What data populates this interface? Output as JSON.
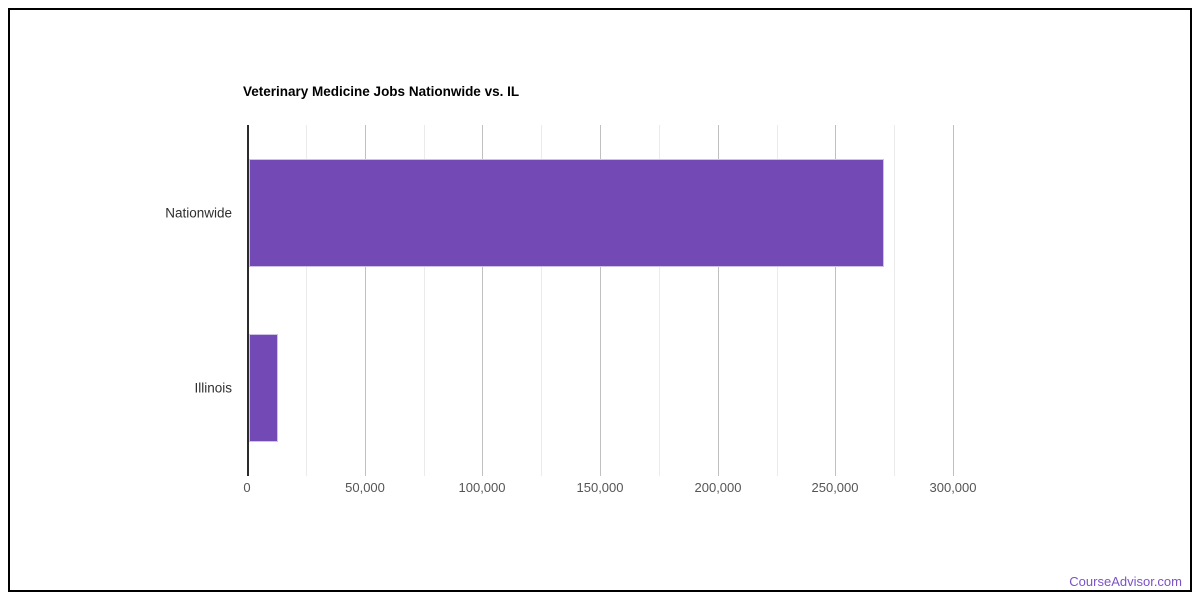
{
  "page": {
    "background_color": "#ffffff",
    "frame_border_color": "#000000"
  },
  "chart_data": {
    "type": "bar",
    "orientation": "horizontal",
    "title": "Veterinary Medicine Jobs Nationwide vs. IL",
    "categories": [
      "Nationwide",
      "Illinois"
    ],
    "values": [
      270000,
      12500
    ],
    "xlabel": "",
    "ylabel": "",
    "xlim": [
      0,
      300000
    ],
    "xticks": [
      0,
      50000,
      100000,
      150000,
      200000,
      250000,
      300000
    ],
    "minor_gridline_step": 25000,
    "grid": true,
    "legend": "none",
    "colors": {
      "bar_fill": "#7249b5",
      "bar_border": "#cfc2e9",
      "major_gridline": "#c0c0c0",
      "minor_gridline": "#ebebeb",
      "axis_line": "#2b2b2b",
      "title_text": "#000000",
      "category_text": "#2f2f2f",
      "tick_text": "#555555"
    }
  },
  "footer": {
    "link_label": "CourseAdvisor.com",
    "link_color": "#7b52c6"
  }
}
